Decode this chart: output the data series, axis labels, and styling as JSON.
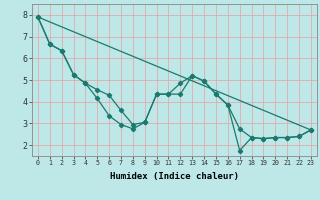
{
  "title": "",
  "xlabel": "Humidex (Indice chaleur)",
  "xlim": [
    -0.5,
    23.5
  ],
  "ylim": [
    1.5,
    8.5
  ],
  "yticks": [
    2,
    3,
    4,
    5,
    6,
    7,
    8
  ],
  "xticks": [
    0,
    1,
    2,
    3,
    4,
    5,
    6,
    7,
    8,
    9,
    10,
    11,
    12,
    13,
    14,
    15,
    16,
    17,
    18,
    19,
    20,
    21,
    22,
    23
  ],
  "bg_color": "#bee8e8",
  "line_color": "#1a7a6e",
  "grid_color": "#e8a0a0",
  "lines": [
    {
      "x": [
        0,
        1,
        2,
        3,
        4,
        5,
        6,
        7,
        8,
        9,
        10,
        11,
        12,
        13,
        14,
        15,
        16,
        17,
        18,
        19,
        20,
        21,
        22,
        23
      ],
      "y": [
        7.9,
        6.65,
        6.35,
        5.25,
        4.85,
        4.55,
        4.3,
        3.6,
        2.95,
        3.05,
        4.35,
        4.35,
        4.85,
        5.2,
        4.95,
        4.35,
        3.85,
        2.75,
        2.35,
        2.3,
        2.35,
        2.35,
        2.4,
        2.7
      ]
    },
    {
      "x": [
        0,
        1,
        2,
        3,
        4,
        5,
        6,
        7,
        8,
        9,
        10,
        11,
        12,
        13,
        14,
        15,
        16,
        17,
        18,
        19,
        20,
        21,
        22,
        23
      ],
      "y": [
        7.9,
        6.65,
        6.35,
        5.25,
        4.85,
        4.15,
        3.35,
        2.95,
        2.75,
        3.05,
        4.35,
        4.35,
        4.35,
        5.2,
        4.95,
        4.35,
        3.85,
        1.75,
        2.35,
        2.3,
        2.35,
        2.35,
        2.4,
        2.7
      ]
    },
    {
      "x": [
        0,
        23
      ],
      "y": [
        7.9,
        2.7
      ],
      "no_markers": true
    }
  ]
}
